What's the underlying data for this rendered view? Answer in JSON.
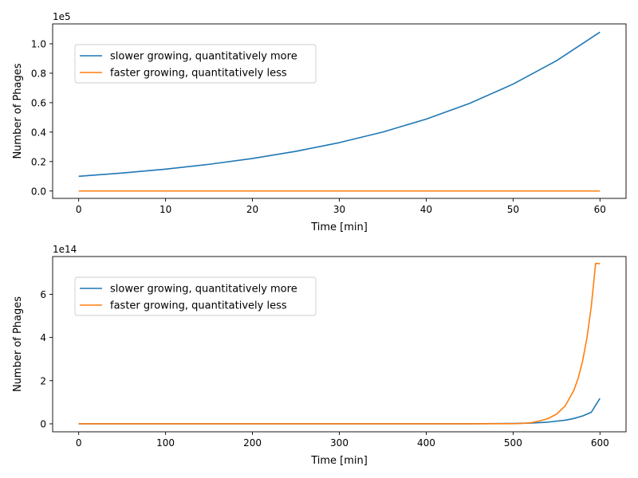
{
  "chart_data": [
    {
      "type": "line",
      "title": "",
      "xlabel": "Time [min]",
      "ylabel": "Number of Phages",
      "y_offset_label": "1e5",
      "xlim": [
        -3,
        63
      ],
      "ylim": [
        -0.05,
        1.135
      ],
      "x_ticks": [
        0,
        10,
        20,
        30,
        40,
        50,
        60
      ],
      "x_tick_labels": [
        "0",
        "10",
        "20",
        "30",
        "40",
        "50",
        "60"
      ],
      "y_ticks": [
        0.0,
        0.2,
        0.4,
        0.6,
        0.8,
        1.0
      ],
      "y_tick_labels": [
        "0.0",
        "0.2",
        "0.4",
        "0.6",
        "0.8",
        "1.0"
      ],
      "grid": false,
      "legend_position": "upper-left",
      "series": [
        {
          "name": "slower growing, quantitatively more",
          "color": "#1f77b4",
          "x": [
            0,
            5,
            10,
            15,
            20,
            25,
            30,
            35,
            40,
            45,
            50,
            55,
            60
          ],
          "y": [
            0.1,
            0.1219,
            0.1487,
            0.1813,
            0.221,
            0.2695,
            0.3286,
            0.4006,
            0.4885,
            0.5955,
            0.7261,
            0.8853,
            1.0794
          ]
        },
        {
          "name": "faster growing, quantitatively less",
          "color": "#ff7f0e",
          "x": [
            0,
            10,
            20,
            30,
            40,
            50,
            60
          ],
          "y": [
            0,
            0,
            0,
            0,
            0,
            0,
            0
          ]
        }
      ]
    },
    {
      "type": "line",
      "title": "",
      "xlabel": "Time [min]",
      "ylabel": "Number of Phages",
      "y_offset_label": "1e14",
      "xlim": [
        -30,
        630
      ],
      "ylim": [
        -0.37,
        7.75
      ],
      "x_ticks": [
        0,
        100,
        200,
        300,
        400,
        500,
        600
      ],
      "x_tick_labels": [
        "0",
        "100",
        "200",
        "300",
        "400",
        "500",
        "600"
      ],
      "y_ticks": [
        0,
        2,
        4,
        6
      ],
      "y_tick_labels": [
        "0",
        "2",
        "4",
        "6"
      ],
      "grid": false,
      "legend_position": "upper-left",
      "series": [
        {
          "name": "slower growing, quantitatively more",
          "color": "#1f77b4",
          "x": [
            0,
            100,
            200,
            300,
            400,
            450,
            500,
            520,
            540,
            560,
            570,
            580,
            590,
            600
          ],
          "y": [
            0,
            0,
            0,
            0,
            0,
            0.0,
            0.0163,
            0.0354,
            0.0769,
            0.1668,
            0.2459,
            0.3624,
            0.5341,
            1.18
          ]
        },
        {
          "name": "faster growing, quantitatively less",
          "color": "#ff7f0e",
          "x": [
            0,
            100,
            200,
            300,
            400,
            450,
            500,
            510,
            520,
            530,
            540,
            550,
            560,
            570,
            575,
            580,
            585,
            590,
            595,
            600
          ],
          "y": [
            0,
            0,
            0,
            0,
            0,
            0,
            0.0066,
            0.0176,
            0.0476,
            0.1278,
            0.2389,
            0.4465,
            0.8334,
            1.5561,
            2.1276,
            2.9087,
            3.9768,
            5.4366,
            7.4331,
            7.42
          ]
        }
      ]
    }
  ]
}
